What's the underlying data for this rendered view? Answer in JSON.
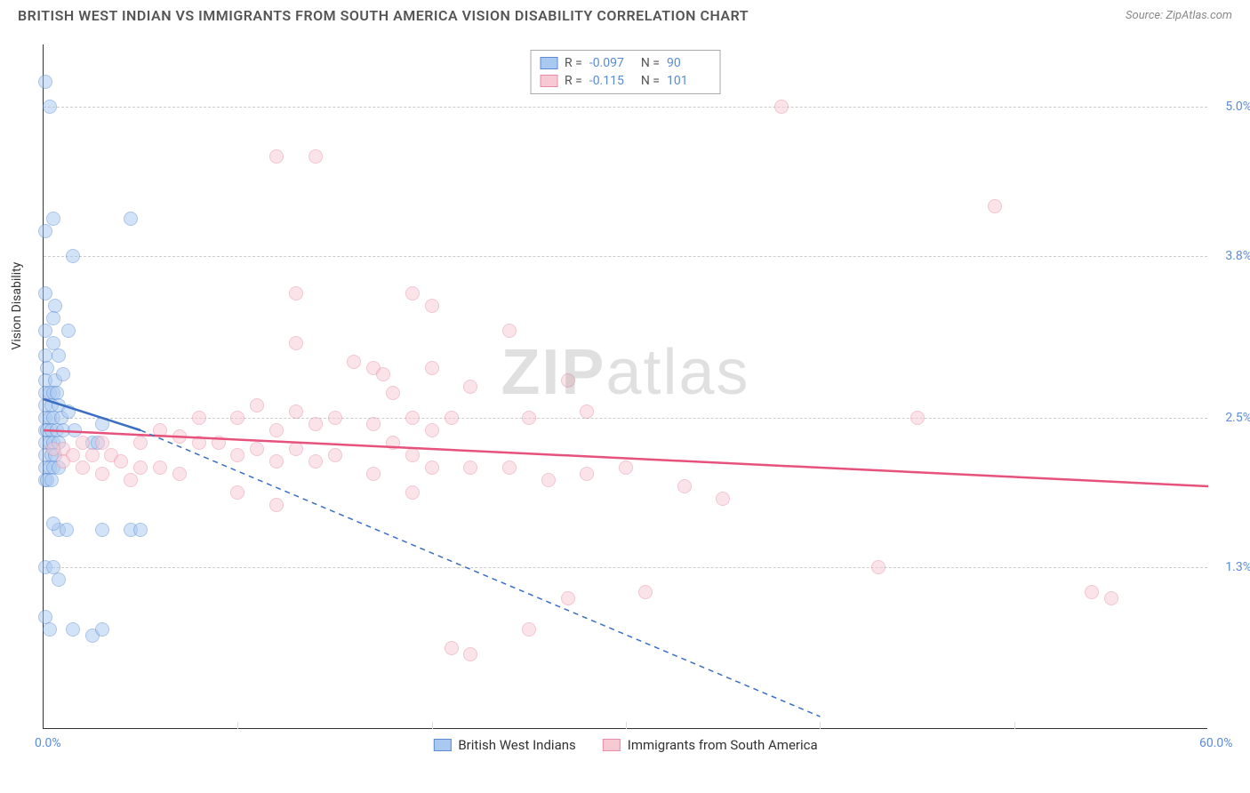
{
  "header": {
    "title": "BRITISH WEST INDIAN VS IMMIGRANTS FROM SOUTH AMERICA VISION DISABILITY CORRELATION CHART",
    "source": "Source: ZipAtlas.com"
  },
  "watermark": {
    "part1": "ZIP",
    "part2": "atlas"
  },
  "chart": {
    "type": "scatter",
    "ylabel": "Vision Disability",
    "xlim": [
      0,
      60
    ],
    "ylim": [
      0,
      5.5
    ],
    "xticks": [
      {
        "value": 0,
        "label": "0.0%"
      },
      {
        "value": 60,
        "label": "60.0%"
      }
    ],
    "x_gridlines": [
      10,
      20,
      30,
      40,
      50
    ],
    "yticks": [
      {
        "value": 1.3,
        "label": "1.3%"
      },
      {
        "value": 2.5,
        "label": "2.5%"
      },
      {
        "value": 3.8,
        "label": "3.8%"
      },
      {
        "value": 5.0,
        "label": "5.0%"
      }
    ],
    "grid_color": "#cccccc",
    "background_color": "#ffffff",
    "marker_radius": 8,
    "series": [
      {
        "id": "a",
        "name": "British West Indians",
        "color_fill": "#a9c9f0",
        "color_stroke": "#5b8bd4",
        "R": "-0.097",
        "N": "90",
        "trend": {
          "x1": 0,
          "y1": 2.65,
          "x2": 5,
          "y2": 2.4,
          "x2_ext": 40,
          "y2_ext": 0.1,
          "solid_until": 5,
          "color": "#3b6fc4"
        },
        "points": [
          [
            0.1,
            5.2
          ],
          [
            0.3,
            5.0
          ],
          [
            0.1,
            4.0
          ],
          [
            0.5,
            4.1
          ],
          [
            4.5,
            4.1
          ],
          [
            1.5,
            3.8
          ],
          [
            0.1,
            3.5
          ],
          [
            0.6,
            3.4
          ],
          [
            0.1,
            3.2
          ],
          [
            0.5,
            3.3
          ],
          [
            1.3,
            3.2
          ],
          [
            0.1,
            3.0
          ],
          [
            0.5,
            3.1
          ],
          [
            0.8,
            3.0
          ],
          [
            0.2,
            2.9
          ],
          [
            0.1,
            2.8
          ],
          [
            0.6,
            2.8
          ],
          [
            1.0,
            2.85
          ],
          [
            0.1,
            2.7
          ],
          [
            0.3,
            2.7
          ],
          [
            0.5,
            2.7
          ],
          [
            0.7,
            2.7
          ],
          [
            0.1,
            2.6
          ],
          [
            0.4,
            2.6
          ],
          [
            0.8,
            2.6
          ],
          [
            0.1,
            2.5
          ],
          [
            0.3,
            2.5
          ],
          [
            0.5,
            2.5
          ],
          [
            0.9,
            2.5
          ],
          [
            1.3,
            2.55
          ],
          [
            0.1,
            2.4
          ],
          [
            0.2,
            2.4
          ],
          [
            0.4,
            2.4
          ],
          [
            0.7,
            2.4
          ],
          [
            1.0,
            2.4
          ],
          [
            1.6,
            2.4
          ],
          [
            3.0,
            2.45
          ],
          [
            0.1,
            2.3
          ],
          [
            0.3,
            2.3
          ],
          [
            0.5,
            2.3
          ],
          [
            0.8,
            2.3
          ],
          [
            0.1,
            2.2
          ],
          [
            0.4,
            2.2
          ],
          [
            0.6,
            2.2
          ],
          [
            0.1,
            2.1
          ],
          [
            0.3,
            2.1
          ],
          [
            0.5,
            2.1
          ],
          [
            0.8,
            2.1
          ],
          [
            0.1,
            2.0
          ],
          [
            0.2,
            2.0
          ],
          [
            0.4,
            2.0
          ],
          [
            2.5,
            2.3
          ],
          [
            2.8,
            2.3
          ],
          [
            0.8,
            1.6
          ],
          [
            1.2,
            1.6
          ],
          [
            0.5,
            1.65
          ],
          [
            3.0,
            1.6
          ],
          [
            4.5,
            1.6
          ],
          [
            5.0,
            1.6
          ],
          [
            0.8,
            1.2
          ],
          [
            0.1,
            1.3
          ],
          [
            0.5,
            1.3
          ],
          [
            1.5,
            0.8
          ],
          [
            0.1,
            0.9
          ],
          [
            2.5,
            0.75
          ],
          [
            3.0,
            0.8
          ],
          [
            0.3,
            0.8
          ]
        ]
      },
      {
        "id": "b",
        "name": "Immigrants from South America",
        "color_fill": "#f7c9d4",
        "color_stroke": "#e88ca5",
        "R": "-0.115",
        "N": "101",
        "trend": {
          "x1": 0,
          "y1": 2.4,
          "x2": 60,
          "y2": 1.95,
          "color": "#e6527b"
        },
        "points": [
          [
            38,
            5.0
          ],
          [
            12,
            4.6
          ],
          [
            14,
            4.6
          ],
          [
            49,
            4.2
          ],
          [
            19,
            3.5
          ],
          [
            13,
            3.5
          ],
          [
            20,
            3.4
          ],
          [
            13,
            3.1
          ],
          [
            24,
            3.2
          ],
          [
            16,
            2.95
          ],
          [
            17,
            2.9
          ],
          [
            17.5,
            2.85
          ],
          [
            20,
            2.9
          ],
          [
            18,
            2.7
          ],
          [
            22,
            2.75
          ],
          [
            27,
            2.8
          ],
          [
            10,
            2.5
          ],
          [
            11,
            2.6
          ],
          [
            12,
            2.4
          ],
          [
            13,
            2.55
          ],
          [
            14,
            2.45
          ],
          [
            15,
            2.5
          ],
          [
            17,
            2.45
          ],
          [
            19,
            2.5
          ],
          [
            20,
            2.4
          ],
          [
            21,
            2.5
          ],
          [
            25,
            2.5
          ],
          [
            28,
            2.55
          ],
          [
            45,
            2.5
          ],
          [
            18,
            2.3
          ],
          [
            19,
            2.2
          ],
          [
            6,
            2.4
          ],
          [
            7,
            2.35
          ],
          [
            8,
            2.3
          ],
          [
            9,
            2.3
          ],
          [
            10,
            2.2
          ],
          [
            11,
            2.25
          ],
          [
            12,
            2.15
          ],
          [
            13,
            2.25
          ],
          [
            14,
            2.15
          ],
          [
            15,
            2.2
          ],
          [
            8,
            2.5
          ],
          [
            5,
            2.3
          ],
          [
            3,
            2.3
          ],
          [
            2,
            2.3
          ],
          [
            1,
            2.25
          ],
          [
            0.5,
            2.25
          ],
          [
            1.5,
            2.2
          ],
          [
            2.5,
            2.2
          ],
          [
            3.5,
            2.2
          ],
          [
            4,
            2.15
          ],
          [
            5,
            2.1
          ],
          [
            6,
            2.1
          ],
          [
            7,
            2.05
          ],
          [
            1,
            2.15
          ],
          [
            2,
            2.1
          ],
          [
            3,
            2.05
          ],
          [
            4.5,
            2.0
          ],
          [
            17,
            2.05
          ],
          [
            19,
            1.9
          ],
          [
            20,
            2.1
          ],
          [
            22,
            2.1
          ],
          [
            24,
            2.1
          ],
          [
            26,
            2.0
          ],
          [
            28,
            2.05
          ],
          [
            30,
            2.1
          ],
          [
            33,
            1.95
          ],
          [
            35,
            1.85
          ],
          [
            10,
            1.9
          ],
          [
            12,
            1.8
          ],
          [
            43,
            1.3
          ],
          [
            31,
            1.1
          ],
          [
            27,
            1.05
          ],
          [
            21,
            0.65
          ],
          [
            22,
            0.6
          ],
          [
            25,
            0.8
          ],
          [
            54,
            1.1
          ],
          [
            55,
            1.05
          ]
        ]
      }
    ],
    "legend_top": {
      "rows": [
        {
          "swatch": "a",
          "r_label": "R =",
          "r_val": "-0.097",
          "n_label": "N =",
          "n_val": "90"
        },
        {
          "swatch": "b",
          "r_label": "R =",
          "r_val": "-0.115",
          "n_label": "N =",
          "n_val": "101"
        }
      ]
    },
    "legend_bottom": [
      {
        "swatch": "a",
        "label": "British West Indians"
      },
      {
        "swatch": "b",
        "label": "Immigrants from South America"
      }
    ]
  }
}
